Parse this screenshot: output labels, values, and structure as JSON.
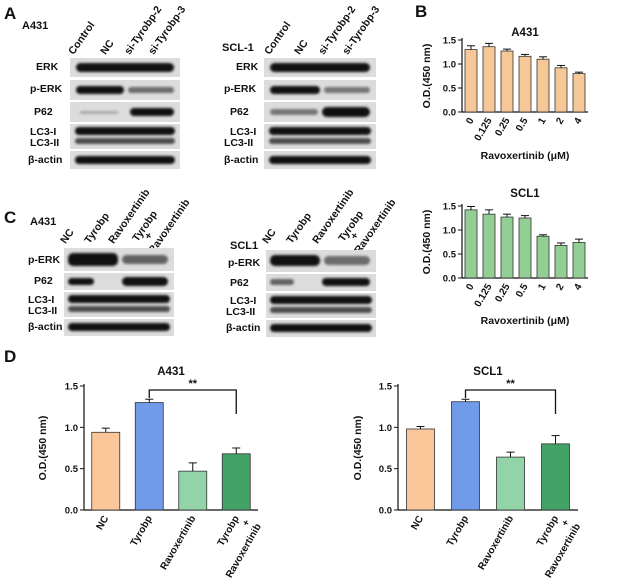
{
  "panels": {
    "A": "A",
    "B": "B",
    "C": "C",
    "D": "D"
  },
  "panelA": {
    "left": {
      "cell": "A431",
      "lanes": [
        "Control",
        "NC",
        "si-Tyrobp-2",
        "si-Tyrobp-3"
      ],
      "proteins": [
        "ERK",
        "p-ERK",
        "P62",
        "LC3-I",
        "LC3-II",
        "β-actin"
      ]
    },
    "right": {
      "cell": "SCL-1",
      "lanes": [
        "Control",
        "NC",
        "si-Tyrobp-2",
        "si-Tyrobp-3"
      ],
      "proteins": [
        "ERK",
        "p-ERK",
        "P62",
        "LC3-I",
        "LC3-II",
        "β-actin"
      ]
    }
  },
  "panelC": {
    "left": {
      "cell": "A431",
      "lanes": [
        "NC",
        "Tyrobp",
        "Ravoxertinib",
        "Tyrobp",
        "+",
        "Ravoxertinib"
      ],
      "proteins": [
        "p-ERK",
        "P62",
        "LC3-I",
        "LC3-II",
        "β-actin"
      ]
    },
    "right": {
      "cell": "SCL1",
      "lanes": [
        "NC",
        "Tyrobp",
        "Ravoxertinib",
        "Tyrobp",
        "+",
        "Ravoxertinib"
      ],
      "proteins": [
        "p-ERK",
        "P62",
        "LC3-I",
        "LC3-II",
        "β-actin"
      ]
    }
  },
  "chart_data": [
    {
      "id": "B-top",
      "type": "bar",
      "title": "A431",
      "categories": [
        "0",
        "0.125",
        "0.25",
        "0.5",
        "1",
        "2",
        "4"
      ],
      "values": [
        1.3,
        1.36,
        1.27,
        1.16,
        1.1,
        0.92,
        0.8
      ],
      "errors": [
        0.08,
        0.07,
        0.04,
        0.04,
        0.05,
        0.05,
        0.03
      ],
      "ylabel": "O.D.(450 nm)",
      "xlabel": "Ravoxertinib (μM)",
      "ylim": [
        0,
        1.5
      ],
      "yticks": [
        "0.0",
        "0.5",
        "1.0",
        "1.5"
      ],
      "color": "#f7c897"
    },
    {
      "id": "B-bottom",
      "type": "bar",
      "title": "SCL1",
      "categories": [
        "0",
        "0.125",
        "0.25",
        "0.5",
        "1",
        "2",
        "4"
      ],
      "values": [
        1.42,
        1.33,
        1.27,
        1.25,
        0.87,
        0.68,
        0.74
      ],
      "errors": [
        0.07,
        0.09,
        0.06,
        0.05,
        0.03,
        0.05,
        0.07
      ],
      "ylabel": "O.D.(450 nm)",
      "xlabel": "Ravoxertinib (μM)",
      "ylim": [
        0,
        1.5
      ],
      "yticks": [
        "0.0",
        "0.5",
        "1.0",
        "1.5"
      ],
      "color": "#93cf94"
    },
    {
      "id": "D-left",
      "type": "bar",
      "title": "A431",
      "categories": [
        "NC",
        "Tyrobp",
        "Ravoxertinib",
        "Tyrobp\n+\nRavoxertinib"
      ],
      "values": [
        0.94,
        1.3,
        0.47,
        0.68
      ],
      "errors": [
        0.05,
        0.04,
        0.1,
        0.07
      ],
      "colors": [
        "#fbc79a",
        "#6f9be8",
        "#92d4a7",
        "#43a366"
      ],
      "ylabel": "O.D.(450 nm)",
      "ylim": [
        0,
        1.5
      ],
      "yticks": [
        "0.0",
        "0.5",
        "1.0",
        "1.5"
      ],
      "significance": {
        "label": "**",
        "from": "Tyrobp",
        "to": "Tyrobp\n+\nRavoxertinib"
      }
    },
    {
      "id": "D-right",
      "type": "bar",
      "title": "SCL1",
      "categories": [
        "NC",
        "Tyrobp",
        "Ravoxertinib",
        "Tyrobp\n+\nRavoxertinib"
      ],
      "values": [
        0.98,
        1.31,
        0.64,
        0.8
      ],
      "errors": [
        0.03,
        0.03,
        0.06,
        0.1
      ],
      "colors": [
        "#fbc79a",
        "#6f9be8",
        "#92d4a7",
        "#43a366"
      ],
      "ylabel": "O.D.(450 nm)",
      "ylim": [
        0,
        1.5
      ],
      "yticks": [
        "0.0",
        "0.5",
        "1.0",
        "1.5"
      ],
      "significance": {
        "label": "**",
        "from": "Tyrobp",
        "to": "Tyrobp\n+\nRavoxertinib"
      }
    }
  ]
}
